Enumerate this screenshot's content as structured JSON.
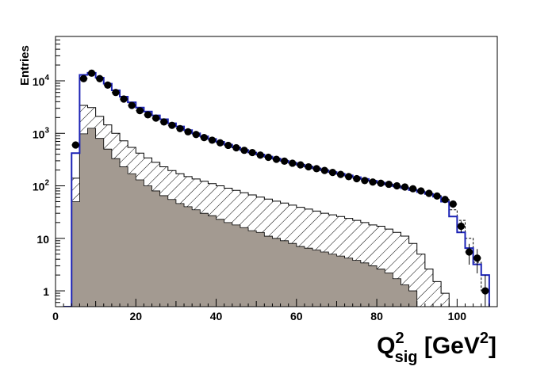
{
  "chart_data": {
    "type": "histogram",
    "title": "",
    "xlabel": {
      "main": "Q",
      "sup": "2",
      "sub": "sig",
      "unit_pre": " [GeV",
      "unit_sup": "2",
      "unit_post": "]"
    },
    "ylabel": "Entries",
    "xlim": [
      0,
      110
    ],
    "ylim": [
      0.5,
      70000
    ],
    "y_scale": "log",
    "grid": false,
    "bin_width": 2,
    "bin_start": 2,
    "x_ticks": [
      "0",
      "20",
      "40",
      "60",
      "80",
      "100"
    ],
    "y_ticks": [
      {
        "value": 1,
        "base": "1",
        "exp": ""
      },
      {
        "value": 10,
        "base": "10",
        "exp": ""
      },
      {
        "value": 100,
        "base": "10",
        "exp": "2"
      },
      {
        "value": 1000,
        "base": "10",
        "exp": "3"
      },
      {
        "value": 10000,
        "base": "10",
        "exp": "4"
      }
    ],
    "colors": {
      "data_points": "#000000",
      "mc_total_line": "#1b22b5",
      "background_fill": "#a39a91",
      "hatched_component": "#000000"
    },
    "series": [
      {
        "kind": "hist-outline-blue",
        "values": [
          0.3,
          420,
          13000,
          14200,
          11500,
          8800,
          6600,
          5000,
          3900,
          3100,
          2600,
          2200,
          1850,
          1550,
          1350,
          1150,
          1000,
          880,
          780,
          690,
          610,
          540,
          480,
          430,
          395,
          360,
          330,
          300,
          275,
          252,
          232,
          215,
          198,
          183,
          170,
          158,
          146,
          135,
          125,
          115,
          106,
          98,
          90,
          83,
          76,
          70,
          62,
          50,
          26,
          13,
          6.5,
          3.2,
          2.0
        ]
      },
      {
        "kind": "hist-outline-dashed",
        "values": [
          0.3,
          420,
          13000,
          14200,
          11500,
          8800,
          6600,
          5000,
          3900,
          3100,
          2600,
          2200,
          1850,
          1550,
          1350,
          1150,
          1000,
          880,
          780,
          690,
          610,
          540,
          480,
          430,
          395,
          360,
          330,
          300,
          275,
          252,
          232,
          215,
          198,
          183,
          170,
          158,
          146,
          135,
          125,
          115,
          106,
          98,
          90,
          83,
          76,
          70,
          65,
          55,
          35,
          22,
          10,
          3.5,
          1.0
        ]
      },
      {
        "kind": "hist-hatched",
        "values": [
          0.3,
          140,
          3400,
          3100,
          2100,
          1450,
          1000,
          720,
          540,
          420,
          340,
          280,
          230,
          195,
          170,
          150,
          135,
          122,
          110,
          100,
          90,
          82,
          74,
          67,
          61,
          56,
          51,
          47,
          43,
          39,
          36,
          33,
          30,
          28,
          26,
          24,
          22,
          20,
          18,
          17,
          15,
          13,
          11,
          8,
          5,
          2.6,
          1.5,
          0.9,
          0.3,
          0.3,
          0.3,
          0.3,
          0.3
        ]
      },
      {
        "kind": "hist-filled",
        "values": [
          0.3,
          50,
          980,
          1250,
          800,
          500,
          330,
          230,
          170,
          130,
          100,
          80,
          65,
          55,
          46,
          40,
          35,
          30,
          27,
          23,
          20,
          18,
          16,
          14,
          13,
          11,
          10,
          9,
          8,
          7,
          6.5,
          6,
          5.5,
          5,
          4.6,
          4.2,
          3.8,
          3.4,
          3.0,
          2.6,
          2.2,
          1.7,
          1.3,
          1.0,
          0.5,
          0.3,
          0.3,
          0.3,
          0.3,
          0.3,
          0.3,
          0.3,
          0.3
        ]
      },
      {
        "kind": "data-points",
        "x": [
          5,
          7,
          9,
          11,
          13,
          15,
          17,
          19,
          21,
          23,
          25,
          27,
          29,
          31,
          33,
          35,
          37,
          39,
          41,
          43,
          45,
          47,
          49,
          51,
          53,
          55,
          57,
          59,
          61,
          63,
          65,
          67,
          69,
          71,
          73,
          75,
          77,
          79,
          81,
          83,
          85,
          87,
          89,
          91,
          93,
          95,
          97,
          99,
          101,
          103,
          105,
          107
        ],
        "y": [
          600,
          11000,
          14000,
          11000,
          8300,
          6000,
          4500,
          3400,
          2700,
          2250,
          1950,
          1650,
          1420,
          1230,
          1070,
          950,
          830,
          740,
          660,
          590,
          530,
          475,
          430,
          385,
          350,
          320,
          295,
          270,
          250,
          230,
          212,
          196,
          180,
          165,
          150,
          137,
          126,
          118,
          112,
          107,
          100,
          95,
          88,
          80,
          72,
          64,
          55,
          45,
          17,
          5.5,
          4.2,
          1.0
        ]
      }
    ]
  }
}
